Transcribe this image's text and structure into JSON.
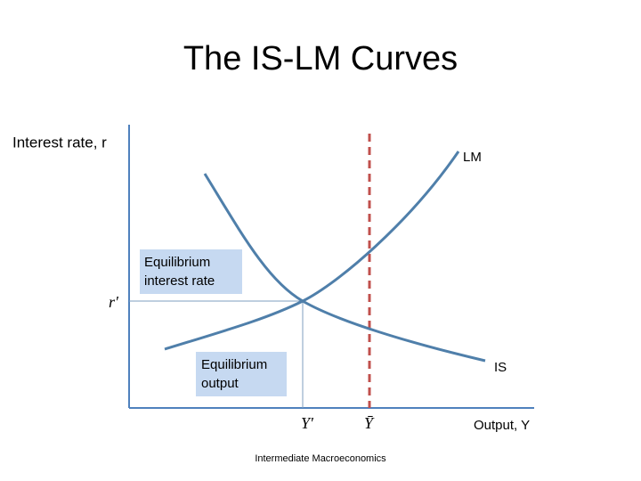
{
  "title": "The IS-LM Curves",
  "y_axis_label": "Interest rate, r",
  "x_axis_label": "Output, Y",
  "curves": {
    "lm": "LM",
    "is": "IS"
  },
  "callouts": {
    "interest_rate": [
      "Equilibrium",
      "interest rate"
    ],
    "output": [
      "Equilibrium",
      "output"
    ]
  },
  "markers": {
    "r_eq": "r′",
    "y_eq": "Y′",
    "y_bar": "Ȳ"
  },
  "footer": "Intermediate Macroeconomics"
}
